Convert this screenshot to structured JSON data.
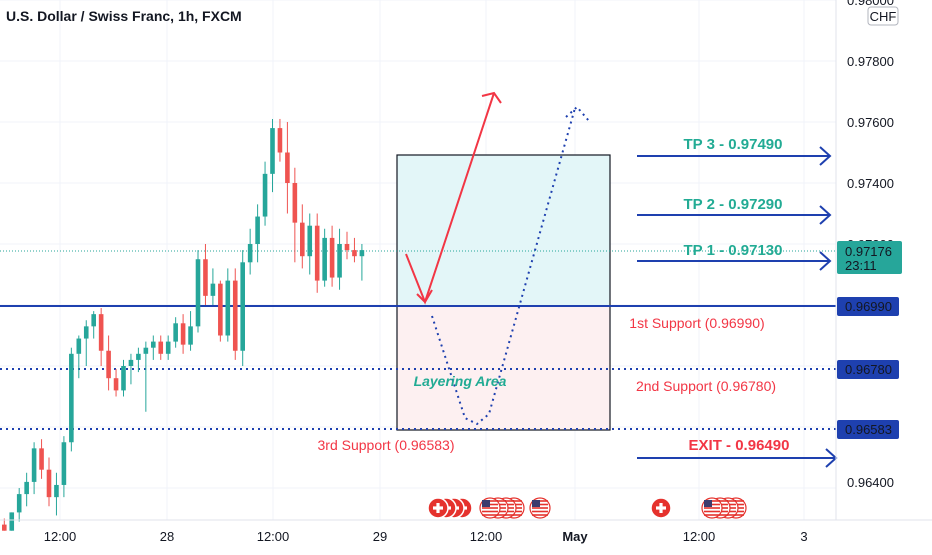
{
  "title": "U.S. Dollar / Swiss Franc, 1h, FXCM",
  "currency_badge": "CHF",
  "colors": {
    "bull": "#26a69a",
    "bear": "#ef5350",
    "navy": "#1e40af",
    "red": "#f23645",
    "teal": "#22ab94",
    "grid": "#f0f3fa"
  },
  "price_axis": {
    "ticks": [
      "0.98000",
      "0.97800",
      "0.97600",
      "0.97400",
      "0.97200",
      "0.96400"
    ],
    "current_price": "0.97176",
    "countdown": "23:11",
    "tag_1": "0.96990",
    "tag_2": "0.96780",
    "tag_3": "0.96583"
  },
  "time_axis": {
    "labels": [
      "12:00",
      "28",
      "12:00",
      "29",
      "12:00",
      "May",
      "12:00",
      "3"
    ]
  },
  "annotations": {
    "tp3": "TP 3 - 0.97490",
    "tp2": "TP 2 - 0.97290",
    "tp1": "TP 1 - 0.97130",
    "support1": "1st Support (0.96990)",
    "support2": "2nd Support (0.96780)",
    "support3": "3rd Support (0.96583)",
    "exit": "EXIT - 0.96490",
    "layering": "Layering Area"
  },
  "event_icons": [
    "swiss-flag-icon",
    "us-flag-icon",
    "us-flag-icon",
    "swiss-flag-icon",
    "us-flag-icon"
  ],
  "chart_data": {
    "type": "candlestick",
    "title": "U.S. Dollar / Swiss Franc, 1h, FXCM",
    "ylim": [
      0.9626,
      0.98
    ],
    "levels": {
      "tp3": 0.9749,
      "tp2": 0.9729,
      "tp1": 0.9713,
      "support1": 0.9699,
      "support2": 0.9678,
      "support3": 0.96583,
      "exit": 0.9649,
      "current": 0.97176
    },
    "candles": [
      [
        0.9628,
        0.963,
        0.9626,
        0.9626
      ],
      [
        0.9626,
        0.9632,
        0.9626,
        0.9632
      ],
      [
        0.9632,
        0.964,
        0.9629,
        0.9638
      ],
      [
        0.9638,
        0.9645,
        0.9634,
        0.9642
      ],
      [
        0.9642,
        0.9655,
        0.9638,
        0.9653
      ],
      [
        0.9653,
        0.9656,
        0.9643,
        0.9646
      ],
      [
        0.9646,
        0.965,
        0.9634,
        0.9637
      ],
      [
        0.9637,
        0.9645,
        0.9631,
        0.9641
      ],
      [
        0.9641,
        0.9657,
        0.9637,
        0.9655
      ],
      [
        0.9655,
        0.9686,
        0.9652,
        0.9684
      ],
      [
        0.9684,
        0.969,
        0.9676,
        0.9689
      ],
      [
        0.9689,
        0.9695,
        0.968,
        0.9693
      ],
      [
        0.9693,
        0.9698,
        0.9689,
        0.9697
      ],
      [
        0.9697,
        0.9699,
        0.968,
        0.9685
      ],
      [
        0.9685,
        0.969,
        0.9672,
        0.9676
      ],
      [
        0.9676,
        0.9679,
        0.967,
        0.9672
      ],
      [
        0.9672,
        0.9682,
        0.967,
        0.968
      ],
      [
        0.968,
        0.9684,
        0.9674,
        0.9682
      ],
      [
        0.9682,
        0.9686,
        0.9678,
        0.9684
      ],
      [
        0.9684,
        0.9688,
        0.9665,
        0.9686
      ],
      [
        0.9686,
        0.969,
        0.9682,
        0.9688
      ],
      [
        0.9688,
        0.969,
        0.9682,
        0.9684
      ],
      [
        0.9684,
        0.969,
        0.9682,
        0.9688
      ],
      [
        0.9688,
        0.9696,
        0.9686,
        0.9694
      ],
      [
        0.9694,
        0.9697,
        0.9684,
        0.9687
      ],
      [
        0.9687,
        0.9698,
        0.9685,
        0.9693
      ],
      [
        0.9693,
        0.9718,
        0.9691,
        0.9715
      ],
      [
        0.9715,
        0.972,
        0.97,
        0.9703
      ],
      [
        0.9703,
        0.9712,
        0.97,
        0.9707
      ],
      [
        0.9707,
        0.9708,
        0.9688,
        0.969
      ],
      [
        0.969,
        0.9712,
        0.9688,
        0.9708
      ],
      [
        0.9708,
        0.9712,
        0.9682,
        0.9685
      ],
      [
        0.9685,
        0.9718,
        0.968,
        0.9714
      ],
      [
        0.9714,
        0.9725,
        0.971,
        0.972
      ],
      [
        0.972,
        0.9733,
        0.9714,
        0.9729
      ],
      [
        0.9729,
        0.9747,
        0.9726,
        0.9743
      ],
      [
        0.9743,
        0.9761,
        0.9737,
        0.9758
      ],
      [
        0.9758,
        0.9761,
        0.9747,
        0.975
      ],
      [
        0.975,
        0.976,
        0.973,
        0.974
      ],
      [
        0.974,
        0.9745,
        0.9714,
        0.9727
      ],
      [
        0.9727,
        0.9733,
        0.9712,
        0.9716
      ],
      [
        0.9716,
        0.973,
        0.971,
        0.9726
      ],
      [
        0.9726,
        0.973,
        0.9704,
        0.9708
      ],
      [
        0.9708,
        0.9725,
        0.9706,
        0.9722
      ],
      [
        0.9722,
        0.9726,
        0.9706,
        0.9709
      ],
      [
        0.9709,
        0.9725,
        0.9705,
        0.972
      ],
      [
        0.972,
        0.9724,
        0.9715,
        0.9718
      ],
      [
        0.9718,
        0.9722,
        0.9714,
        0.9716
      ],
      [
        0.9716,
        0.972,
        0.9708,
        0.9718
      ]
    ]
  }
}
